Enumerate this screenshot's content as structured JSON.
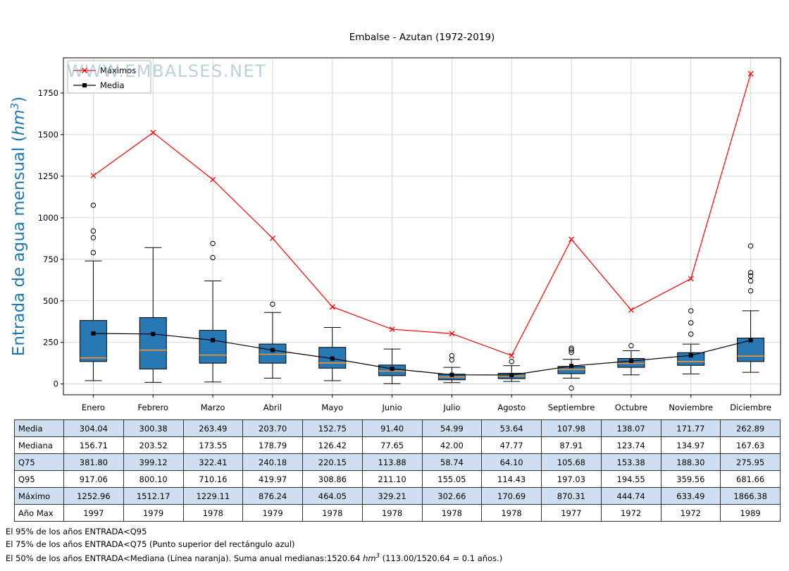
{
  "watermark": "WWW.EMBALSES.NET",
  "chart_data": {
    "type": "boxplot",
    "title": "Embalse - Azutan (1972-2019)",
    "ylabel": "Entrada de agua mensual (hm³)",
    "ylabel_prefix": "Entrada de agua mensual (",
    "ylabel_unit": "hm",
    "ylabel_sup": "3",
    "ylabel_suffix": ")",
    "categories": [
      "Enero",
      "Febrero",
      "Marzo",
      "Abril",
      "Mayo",
      "Junio",
      "Julio",
      "Agosto",
      "Septiembre",
      "Octubre",
      "Noviembre",
      "Diciembre"
    ],
    "yticks": [
      0,
      250,
      500,
      750,
      1000,
      1250,
      1500,
      1750
    ],
    "ylim": [
      -65,
      1962
    ],
    "grid": true,
    "legend_position": "upper-left",
    "series": [
      {
        "name": "Máximos",
        "type": "line",
        "marker": "x",
        "color": "#ff0000",
        "values": [
          1252.96,
          1512.17,
          1229.11,
          876.24,
          464.05,
          329.21,
          302.66,
          170.69,
          870.31,
          444.74,
          633.49,
          1866.38
        ]
      },
      {
        "name": "Media",
        "type": "line",
        "marker": "square",
        "color": "#000000",
        "values": [
          304.04,
          300.38,
          263.49,
          203.7,
          152.75,
          91.4,
          54.99,
          53.64,
          107.98,
          138.07,
          171.77,
          262.89
        ]
      }
    ],
    "boxplot": {
      "q1": [
        135,
        90,
        125,
        125,
        95,
        50,
        25,
        32,
        62,
        100,
        112,
        135
      ],
      "median": [
        156.71,
        203.52,
        173.55,
        178.79,
        126.42,
        77.65,
        42.0,
        47.77,
        87.91,
        123.74,
        134.97,
        167.63
      ],
      "q3": [
        381.8,
        399.12,
        322.41,
        240.18,
        220.15,
        113.88,
        58.74,
        64.1,
        105.68,
        153.38,
        188.3,
        275.95
      ],
      "whisker_low": [
        20,
        10,
        12,
        35,
        20,
        2,
        8,
        15,
        35,
        55,
        60,
        70
      ],
      "whisker_high": [
        740,
        820,
        620,
        430,
        340,
        210,
        100,
        110,
        148,
        200,
        240,
        440
      ],
      "outliers": [
        [
          790,
          880,
          920,
          1075
        ],
        [],
        [
          760,
          845
        ],
        [
          480
        ],
        [],
        [],
        [
          145,
          170
        ],
        [
          135
        ],
        [
          -25,
          190,
          205,
          215
        ],
        [
          230
        ],
        [
          300,
          368,
          440
        ],
        [
          560,
          620,
          650,
          670,
          830
        ]
      ]
    },
    "colors": {
      "box_fill": "#2878b4",
      "median": "#ff9429",
      "ylabel": "#1f77b4",
      "watermark": "#74a3c0",
      "grid": "#cccccc"
    }
  },
  "table": {
    "rows": [
      {
        "label": "Media",
        "shaded": true,
        "values": [
          "304.04",
          "300.38",
          "263.49",
          "203.70",
          "152.75",
          "91.40",
          "54.99",
          "53.64",
          "107.98",
          "138.07",
          "171.77",
          "262.89"
        ]
      },
      {
        "label": "Mediana",
        "shaded": false,
        "values": [
          "156.71",
          "203.52",
          "173.55",
          "178.79",
          "126.42",
          "77.65",
          "42.00",
          "47.77",
          "87.91",
          "123.74",
          "134.97",
          "167.63"
        ]
      },
      {
        "label": "Q75",
        "shaded": true,
        "values": [
          "381.80",
          "399.12",
          "322.41",
          "240.18",
          "220.15",
          "113.88",
          "58.74",
          "64.10",
          "105.68",
          "153.38",
          "188.30",
          "275.95"
        ]
      },
      {
        "label": "Q95",
        "shaded": false,
        "values": [
          "917.06",
          "800.10",
          "710.16",
          "419.97",
          "308.86",
          "211.10",
          "155.05",
          "114.43",
          "197.03",
          "194.55",
          "359.56",
          "681.66"
        ]
      },
      {
        "label": "Máximo",
        "shaded": true,
        "values": [
          "1252.96",
          "1512.17",
          "1229.11",
          "876.24",
          "464.05",
          "329.21",
          "302.66",
          "170.69",
          "870.31",
          "444.74",
          "633.49",
          "1866.38"
        ]
      },
      {
        "label": "Año Max",
        "shaded": false,
        "values": [
          "1997",
          "1979",
          "1978",
          "1979",
          "1978",
          "1978",
          "1978",
          "1978",
          "1977",
          "1972",
          "1972",
          "1989"
        ]
      }
    ]
  },
  "footer": {
    "line1": "El 95% de los años ENTRADA<Q95",
    "line2": "El 75% de los años ENTRADA<Q75 (Punto superior del rectángulo azul)",
    "line3_prefix": "El 50% de los años ENTRADA<Mediana (Línea naranja). Suma anual medianas:1520.64 ",
    "line3_unit": "hm",
    "line3_sup": "3",
    "line3_suffix": " (113.00/1520.64 = 0.1 años.)"
  }
}
